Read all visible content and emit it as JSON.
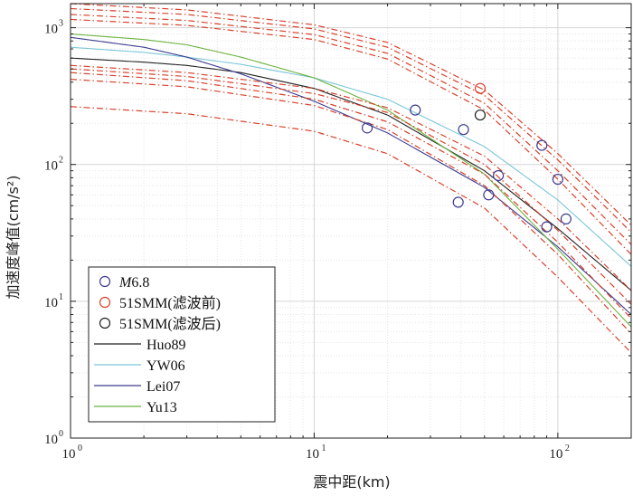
{
  "chart_data": {
    "type": "scatter",
    "title": "",
    "xlabel": "震中距(km)",
    "ylabel": "加速度峰值(cm/s²)",
    "xscale": "log",
    "yscale": "log",
    "xlim": [
      1,
      200
    ],
    "ylim": [
      1,
      1500
    ],
    "grid": true,
    "legend_position": "bottom-left",
    "x_ticks": [
      {
        "base": "10",
        "exp": "0",
        "value": 1
      },
      {
        "base": "10",
        "exp": "1",
        "value": 10
      },
      {
        "base": "10",
        "exp": "2",
        "value": 100
      }
    ],
    "y_ticks": [
      {
        "base": "10",
        "exp": "0",
        "value": 1
      },
      {
        "base": "10",
        "exp": "1",
        "value": 10
      },
      {
        "base": "10",
        "exp": "2",
        "value": 100
      },
      {
        "base": "10",
        "exp": "3",
        "value": 1000
      }
    ],
    "legend": [
      {
        "label_italic": "M",
        "label": "6.8",
        "kind": "marker",
        "color": "#3b3b8f"
      },
      {
        "label": "51SMM(滤波前)",
        "kind": "marker",
        "color": "#d8412c"
      },
      {
        "label": "51SMM(滤波后)",
        "kind": "marker",
        "color": "#222222"
      },
      {
        "label": "Huo89",
        "kind": "line",
        "color": "#222222"
      },
      {
        "label": "YW06",
        "kind": "line",
        "color": "#7cc6d9"
      },
      {
        "label": "Lei07",
        "kind": "line",
        "color": "#3b3b8f"
      },
      {
        "label": "Yu13",
        "kind": "line",
        "color": "#6cb33f"
      }
    ],
    "series": [
      {
        "name": "M6.8",
        "type": "scatter",
        "color": "#3b3b8f",
        "x": [
          16.5,
          26,
          39,
          41,
          52,
          57,
          86,
          90,
          100,
          108
        ],
        "y": [
          185,
          250,
          53,
          180,
          60,
          83,
          138,
          35,
          78,
          40
        ]
      },
      {
        "name": "51SMM(滤波前)",
        "type": "scatter",
        "color": "#d8412c",
        "x": [
          48
        ],
        "y": [
          360
        ]
      },
      {
        "name": "51SMM(滤波后)",
        "type": "scatter",
        "color": "#222222",
        "x": [
          48
        ],
        "y": [
          230
        ]
      },
      {
        "name": "Huo89",
        "type": "line",
        "color": "#222222",
        "x": [
          1,
          2,
          3,
          5,
          10,
          20,
          50,
          100,
          200
        ],
        "y": [
          600,
          560,
          530,
          470,
          360,
          230,
          90,
          34,
          12
        ]
      },
      {
        "name": "YW06",
        "type": "line",
        "color": "#7cc6d9",
        "x": [
          1,
          2,
          3,
          5,
          10,
          20,
          50,
          100,
          200
        ],
        "y": [
          720,
          660,
          610,
          540,
          430,
          300,
          135,
          55,
          18
        ]
      },
      {
        "name": "Lei07",
        "type": "line",
        "color": "#3b3b8f",
        "x": [
          1,
          2,
          3,
          5,
          10,
          20,
          50,
          100,
          200
        ],
        "y": [
          850,
          720,
          610,
          460,
          290,
          170,
          68,
          25,
          8
        ]
      },
      {
        "name": "Yu13",
        "type": "line",
        "color": "#6cb33f",
        "x": [
          1,
          2,
          3,
          5,
          10,
          20,
          50,
          100,
          200
        ],
        "y": [
          900,
          820,
          750,
          610,
          430,
          250,
          85,
          24,
          6.5
        ]
      },
      {
        "type": "dashdot",
        "color": "#d8412c",
        "x": [
          1,
          3,
          10,
          20,
          50,
          100,
          200
        ],
        "y": [
          1500,
          1350,
          1050,
          780,
          350,
          120,
          36
        ]
      },
      {
        "type": "dashdot",
        "color": "#d8412c",
        "x": [
          1,
          3,
          10,
          20,
          50,
          100,
          200
        ],
        "y": [
          1380,
          1250,
          980,
          720,
          320,
          108,
          32
        ]
      },
      {
        "type": "dashdot",
        "color": "#d8412c",
        "x": [
          1,
          3,
          10,
          20,
          50,
          100,
          200
        ],
        "y": [
          1250,
          1130,
          890,
          650,
          280,
          90,
          26
        ]
      },
      {
        "type": "dashdot",
        "color": "#d8412c",
        "x": [
          1,
          3,
          10,
          20,
          50,
          100,
          200
        ],
        "y": [
          1150,
          1040,
          820,
          590,
          250,
          78,
          22
        ]
      },
      {
        "type": "dashdot",
        "color": "#d8412c",
        "x": [
          1,
          3,
          10,
          20,
          50,
          100,
          200
        ],
        "y": [
          530,
          470,
          360,
          260,
          115,
          40,
          12
        ]
      },
      {
        "type": "dashdot",
        "color": "#d8412c",
        "x": [
          1,
          3,
          10,
          20,
          50,
          100,
          200
        ],
        "y": [
          500,
          440,
          330,
          240,
          100,
          33,
          9.5
        ]
      },
      {
        "type": "dashdot",
        "color": "#d8412c",
        "x": [
          1,
          3,
          10,
          20,
          50,
          100,
          200
        ],
        "y": [
          470,
          410,
          300,
          205,
          85,
          27,
          7.5
        ]
      },
      {
        "type": "dashdot",
        "color": "#d8412c",
        "x": [
          1,
          3,
          10,
          20,
          50,
          100,
          200
        ],
        "y": [
          420,
          370,
          270,
          180,
          70,
          22,
          5.8
        ]
      },
      {
        "type": "dashdot",
        "color": "#d8412c",
        "x": [
          1,
          3,
          10,
          20,
          50,
          100,
          200
        ],
        "y": [
          265,
          235,
          175,
          120,
          48,
          15,
          4.2
        ]
      }
    ]
  }
}
